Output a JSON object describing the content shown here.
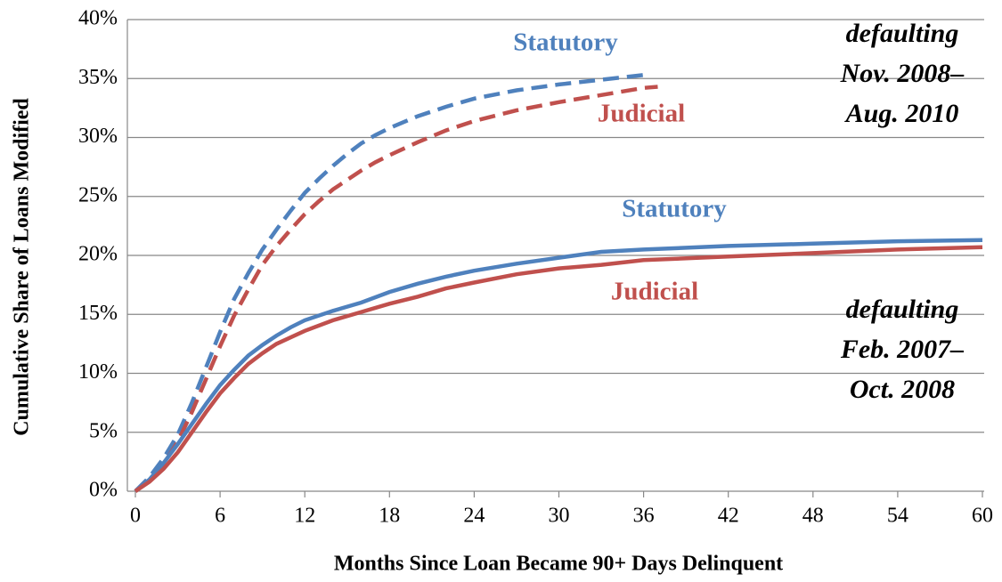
{
  "chart_data": {
    "type": "line",
    "x_label": "Months Since Loan Became 90+ Days Delinquent",
    "y_label": "Cumulative Share of Loans Modified",
    "xlim": [
      0,
      60
    ],
    "xticks": [
      0,
      6,
      12,
      18,
      24,
      30,
      36,
      42,
      48,
      54,
      60
    ],
    "ylim": [
      0,
      40
    ],
    "yticks": [
      {
        "value": 0,
        "label": "0%"
      },
      {
        "value": 5,
        "label": "5%"
      },
      {
        "value": 10,
        "label": "10%"
      },
      {
        "value": 15,
        "label": "15%"
      },
      {
        "value": 20,
        "label": "20%"
      },
      {
        "value": 25,
        "label": "25%"
      },
      {
        "value": 30,
        "label": "30%"
      },
      {
        "value": 35,
        "label": "35%"
      },
      {
        "value": 40,
        "label": "40%"
      }
    ],
    "grid": true,
    "series": [
      {
        "name": "Statutory",
        "color": "#4f81bd",
        "dashed": true,
        "x": [
          0,
          1,
          2,
          3,
          4,
          5,
          6,
          7,
          8,
          9,
          10,
          11,
          12,
          13,
          14,
          15,
          16,
          17,
          18,
          20,
          22,
          24,
          27,
          30,
          33,
          36
        ],
        "values": [
          0,
          1.2,
          2.8,
          4.8,
          7.5,
          10.5,
          13.5,
          16.3,
          18.5,
          20.5,
          22.2,
          23.8,
          25.3,
          26.5,
          27.6,
          28.6,
          29.5,
          30.2,
          30.8,
          31.8,
          32.6,
          33.3,
          34,
          34.5,
          34.9,
          35.3
        ]
      },
      {
        "name": "Judicial",
        "color": "#c0504d",
        "dashed": true,
        "x": [
          0,
          1,
          2,
          3,
          4,
          5,
          6,
          7,
          8,
          9,
          10,
          11,
          12,
          13,
          14,
          15,
          16,
          17,
          18,
          20,
          22,
          24,
          27,
          30,
          33,
          36,
          37
        ],
        "values": [
          0,
          1.0,
          2.3,
          4.2,
          6.7,
          9.5,
          12.3,
          14.9,
          17.1,
          19.2,
          20.8,
          22.2,
          23.5,
          24.6,
          25.6,
          26.4,
          27.2,
          27.9,
          28.5,
          29.6,
          30.6,
          31.4,
          32.3,
          33,
          33.6,
          34.2,
          34.3
        ]
      },
      {
        "name": "Statutory",
        "color": "#4f81bd",
        "dashed": false,
        "x": [
          0,
          1,
          2,
          3,
          4,
          5,
          6,
          7,
          8,
          9,
          10,
          11,
          12,
          14,
          16,
          18,
          20,
          22,
          24,
          27,
          30,
          33,
          36,
          42,
          48,
          54,
          60
        ],
        "values": [
          0,
          1,
          2.4,
          4,
          5.7,
          7.4,
          9,
          10.3,
          11.5,
          12.4,
          13.2,
          13.9,
          14.5,
          15.3,
          16,
          16.9,
          17.6,
          18.2,
          18.7,
          19.3,
          19.8,
          20.3,
          20.5,
          20.8,
          21,
          21.2,
          21.3
        ]
      },
      {
        "name": "Judicial",
        "color": "#c0504d",
        "dashed": false,
        "x": [
          0,
          1,
          2,
          3,
          4,
          5,
          6,
          7,
          8,
          9,
          10,
          12,
          14,
          16,
          18,
          20,
          22,
          24,
          27,
          30,
          33,
          36,
          42,
          48,
          54,
          60
        ],
        "values": [
          0,
          0.8,
          1.9,
          3.3,
          5,
          6.7,
          8.3,
          9.6,
          10.8,
          11.7,
          12.5,
          13.6,
          14.5,
          15.2,
          15.9,
          16.5,
          17.2,
          17.7,
          18.4,
          18.9,
          19.2,
          19.6,
          19.9,
          20.2,
          20.5,
          20.7
        ]
      }
    ],
    "annotations": [
      [
        "defaulting",
        "Nov. 2008–",
        "Aug. 2010"
      ],
      [
        "defaulting",
        "Feb. 2007–",
        "Oct. 2008"
      ]
    ]
  }
}
